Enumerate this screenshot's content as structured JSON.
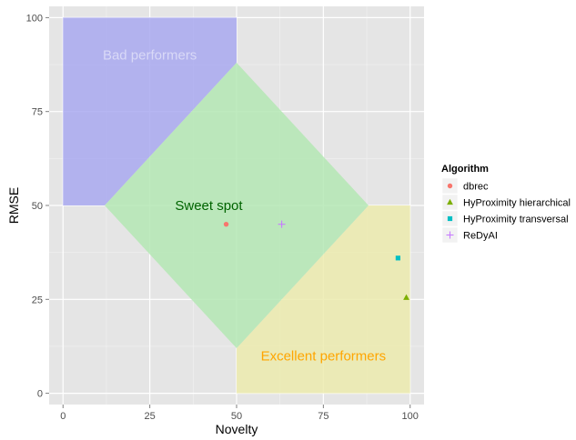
{
  "chart_data": {
    "type": "scatter",
    "xlabel": "Novelty",
    "ylabel": "RMSE",
    "xlim": [
      -4,
      104
    ],
    "ylim": [
      -3,
      103
    ],
    "x_ticks": [
      0,
      25,
      50,
      75,
      100
    ],
    "y_ticks": [
      0,
      25,
      50,
      75,
      100
    ],
    "grid": true,
    "legend": {
      "title": "Algorithm",
      "placement": "right"
    },
    "regions": [
      {
        "name": "bad",
        "label": "Bad performers",
        "color": "#a9a9f0",
        "label_color": "#d9d9f7",
        "label_at": [
          25,
          90
        ],
        "polygon": [
          [
            0,
            50
          ],
          [
            0,
            100
          ],
          [
            50,
            100
          ],
          [
            50,
            88
          ],
          [
            12,
            50
          ]
        ]
      },
      {
        "name": "excellent",
        "label": "Excellent performers",
        "color": "#ecebae",
        "label_color": "#ffa500",
        "label_at": [
          75,
          10
        ],
        "polygon": [
          [
            50,
            0
          ],
          [
            100,
            0
          ],
          [
            100,
            50
          ],
          [
            88,
            50
          ],
          [
            50,
            12
          ]
        ]
      },
      {
        "name": "sweet",
        "label": "Sweet spot",
        "color": "#b4e7b4",
        "label_color": "#006400",
        "label_at": [
          42,
          50
        ],
        "polygon": [
          [
            12,
            50
          ],
          [
            50,
            88
          ],
          [
            88,
            50
          ],
          [
            50,
            12
          ]
        ]
      }
    ],
    "series": [
      {
        "name": "dbrec",
        "color": "#f8766d",
        "shape": "circle",
        "points": [
          [
            47,
            45
          ]
        ]
      },
      {
        "name": "HyProximity hierarchical",
        "color": "#7cae00",
        "shape": "triangle",
        "points": [
          [
            98.9,
            25.5
          ]
        ]
      },
      {
        "name": "HyProximity transversal",
        "color": "#00bfc4",
        "shape": "square",
        "points": [
          [
            96.5,
            36
          ]
        ]
      },
      {
        "name": "ReDyAI",
        "color": "#c77cff",
        "shape": "plus",
        "points": [
          [
            63,
            45
          ]
        ]
      }
    ]
  }
}
